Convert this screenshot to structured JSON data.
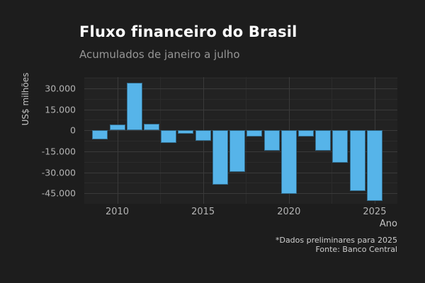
{
  "colors": {
    "background": "#1d1d1d",
    "panel_background": "#222222",
    "grid_major": "#3a3a3a",
    "grid_minor": "#2b2b2b",
    "bar_fill": "#56b4e9",
    "title_text": "#ffffff",
    "subtitle_text": "#969696",
    "axis_text": "#b3b3b3"
  },
  "chart_data": {
    "type": "bar",
    "title": "Fluxo financeiro do Brasil",
    "subtitle": "Acumulados de janeiro a julho",
    "xlabel": "Ano",
    "ylabel": "US$ milhões",
    "caption_line1": "*Dados preliminares para 2025",
    "caption_line2": "Fonte: Banco Central",
    "x": [
      2009,
      2010,
      2011,
      2012,
      2013,
      2014,
      2015,
      2016,
      2017,
      2018,
      2019,
      2020,
      2021,
      2022,
      2023,
      2024,
      2025
    ],
    "values": [
      -6300,
      4300,
      33800,
      4800,
      -9100,
      -2300,
      -7500,
      -38700,
      -29600,
      -4400,
      -14300,
      -45400,
      -4500,
      -14500,
      -22900,
      -43300,
      -50400
    ],
    "units": "US$ milhões",
    "ylim": [
      -52400,
      38000
    ],
    "yticks": [
      30000,
      15000,
      0,
      -15000,
      -30000,
      -45000
    ],
    "ytick_labels": [
      "30.000",
      "15.000",
      "0",
      "-15.000",
      "-30.000",
      "-45.000"
    ],
    "yticks_minor": [
      37500,
      22500,
      7500,
      -7500,
      -22500,
      -37500,
      -52500
    ],
    "xticks": [
      2010,
      2015,
      2020,
      2025
    ],
    "xtick_labels": [
      "2010",
      "2015",
      "2020",
      "2025"
    ],
    "xticks_minor": [
      2012.5,
      2017.5,
      2022.5
    ],
    "grid": true,
    "legend": "none",
    "bar_color": "#56b4e9"
  }
}
